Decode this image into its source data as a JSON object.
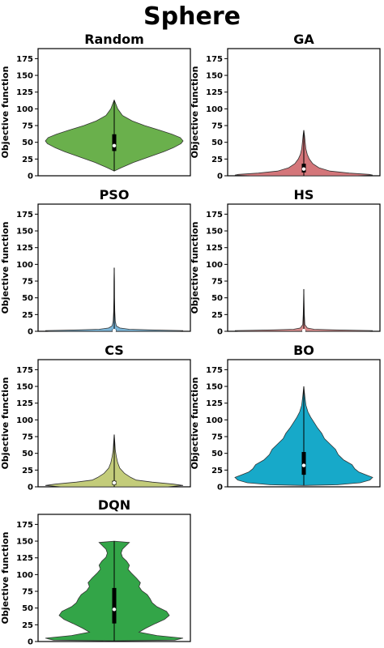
{
  "figure_title": "Sphere",
  "chart_data": [
    {
      "type": "violin",
      "title": "Random",
      "ylabel": "Objective function",
      "ylim": [
        0,
        190
      ],
      "yticks": [
        0,
        25,
        50,
        75,
        100,
        125,
        150,
        175
      ],
      "color": "#6ab04c",
      "median": 45,
      "q1": 37,
      "q3": 62,
      "profile": [
        {
          "y": 7,
          "w": 0.0
        },
        {
          "y": 12,
          "w": 0.1
        },
        {
          "y": 20,
          "w": 0.28
        },
        {
          "y": 28,
          "w": 0.5
        },
        {
          "y": 36,
          "w": 0.72
        },
        {
          "y": 42,
          "w": 0.86
        },
        {
          "y": 48,
          "w": 0.97
        },
        {
          "y": 52,
          "w": 1.0
        },
        {
          "y": 57,
          "w": 0.96
        },
        {
          "y": 62,
          "w": 0.84
        },
        {
          "y": 68,
          "w": 0.66
        },
        {
          "y": 75,
          "w": 0.44
        },
        {
          "y": 82,
          "w": 0.26
        },
        {
          "y": 90,
          "w": 0.12
        },
        {
          "y": 100,
          "w": 0.05
        },
        {
          "y": 108,
          "w": 0.02
        },
        {
          "y": 113,
          "w": 0.0
        }
      ]
    },
    {
      "type": "violin",
      "title": "GA",
      "ylabel": "Objective function",
      "ylim": [
        0,
        190
      ],
      "yticks": [
        0,
        25,
        50,
        75,
        100,
        125,
        150,
        175
      ],
      "color": "#d4767a",
      "median": 10,
      "q1": 5,
      "q3": 18,
      "profile": [
        {
          "y": 0,
          "w": 0.78
        },
        {
          "y": 1,
          "w": 1.0
        },
        {
          "y": 2,
          "w": 0.95
        },
        {
          "y": 4,
          "w": 0.66
        },
        {
          "y": 7,
          "w": 0.38
        },
        {
          "y": 12,
          "w": 0.22
        },
        {
          "y": 18,
          "w": 0.13
        },
        {
          "y": 25,
          "w": 0.08
        },
        {
          "y": 32,
          "w": 0.05
        },
        {
          "y": 40,
          "w": 0.03
        },
        {
          "y": 50,
          "w": 0.02
        },
        {
          "y": 60,
          "w": 0.01
        },
        {
          "y": 68,
          "w": 0.0
        }
      ]
    },
    {
      "type": "violin",
      "title": "PSO",
      "ylabel": "Objective function",
      "ylim": [
        0,
        190
      ],
      "yticks": [
        0,
        25,
        50,
        75,
        100,
        125,
        150,
        175
      ],
      "color": "#7ab6d9",
      "median": 1,
      "q1": 0,
      "q3": 3,
      "profile": [
        {
          "y": 0,
          "w": 0.95
        },
        {
          "y": 1,
          "w": 1.0
        },
        {
          "y": 2,
          "w": 0.52
        },
        {
          "y": 3,
          "w": 0.22
        },
        {
          "y": 5,
          "w": 0.08
        },
        {
          "y": 8,
          "w": 0.03
        },
        {
          "y": 15,
          "w": 0.015
        },
        {
          "y": 30,
          "w": 0.008
        },
        {
          "y": 50,
          "w": 0.005
        },
        {
          "y": 75,
          "w": 0.003
        },
        {
          "y": 95,
          "w": 0.0
        }
      ]
    },
    {
      "type": "violin",
      "title": "HS",
      "ylabel": "Objective function",
      "ylim": [
        0,
        190
      ],
      "yticks": [
        0,
        25,
        50,
        75,
        100,
        125,
        150,
        175
      ],
      "color": "#d98c8c",
      "median": 1,
      "q1": 0,
      "q3": 2,
      "profile": [
        {
          "y": 0,
          "w": 0.95
        },
        {
          "y": 1,
          "w": 1.0
        },
        {
          "y": 2,
          "w": 0.45
        },
        {
          "y": 3,
          "w": 0.15
        },
        {
          "y": 5,
          "w": 0.05
        },
        {
          "y": 10,
          "w": 0.015
        },
        {
          "y": 25,
          "w": 0.008
        },
        {
          "y": 45,
          "w": 0.004
        },
        {
          "y": 63,
          "w": 0.0
        }
      ]
    },
    {
      "type": "violin",
      "title": "CS",
      "ylabel": "Objective function",
      "ylim": [
        0,
        190
      ],
      "yticks": [
        0,
        25,
        50,
        75,
        100,
        125,
        150,
        175
      ],
      "color": "#c3cc7a",
      "median": 6,
      "q1": 3,
      "q3": 9,
      "profile": [
        {
          "y": 0,
          "w": 0.78
        },
        {
          "y": 2,
          "w": 1.0
        },
        {
          "y": 4,
          "w": 0.86
        },
        {
          "y": 7,
          "w": 0.55
        },
        {
          "y": 10,
          "w": 0.32
        },
        {
          "y": 14,
          "w": 0.24
        },
        {
          "y": 20,
          "w": 0.15
        },
        {
          "y": 28,
          "w": 0.08
        },
        {
          "y": 36,
          "w": 0.05
        },
        {
          "y": 45,
          "w": 0.03
        },
        {
          "y": 55,
          "w": 0.015
        },
        {
          "y": 65,
          "w": 0.01
        },
        {
          "y": 78,
          "w": 0.0
        }
      ]
    },
    {
      "type": "violin",
      "title": "BO",
      "ylabel": "Objective function",
      "ylim": [
        0,
        190
      ],
      "yticks": [
        0,
        25,
        50,
        75,
        100,
        125,
        150,
        175
      ],
      "color": "#17a9c9",
      "median": 32,
      "q1": 18,
      "q3": 52,
      "profile": [
        {
          "y": 2,
          "w": 0.0
        },
        {
          "y": 3,
          "w": 0.48
        },
        {
          "y": 6,
          "w": 0.82
        },
        {
          "y": 10,
          "w": 0.96
        },
        {
          "y": 14,
          "w": 1.0
        },
        {
          "y": 18,
          "w": 0.9
        },
        {
          "y": 22,
          "w": 0.8
        },
        {
          "y": 27,
          "w": 0.74
        },
        {
          "y": 33,
          "w": 0.7
        },
        {
          "y": 40,
          "w": 0.58
        },
        {
          "y": 48,
          "w": 0.5
        },
        {
          "y": 56,
          "w": 0.46
        },
        {
          "y": 64,
          "w": 0.38
        },
        {
          "y": 72,
          "w": 0.3
        },
        {
          "y": 80,
          "w": 0.26
        },
        {
          "y": 88,
          "w": 0.2
        },
        {
          "y": 96,
          "w": 0.15
        },
        {
          "y": 104,
          "w": 0.1
        },
        {
          "y": 112,
          "w": 0.06
        },
        {
          "y": 122,
          "w": 0.03
        },
        {
          "y": 135,
          "w": 0.015
        },
        {
          "y": 150,
          "w": 0.0
        }
      ]
    },
    {
      "type": "violin",
      "title": "DQN",
      "ylabel": "Objective function",
      "ylim": [
        0,
        190
      ],
      "yticks": [
        0,
        25,
        50,
        75,
        100,
        125,
        150,
        175
      ],
      "color": "#33a548",
      "median": 48,
      "q1": 27,
      "q3": 80,
      "profile": [
        {
          "y": 1,
          "w": 0.0
        },
        {
          "y": 2,
          "w": 0.88
        },
        {
          "y": 5,
          "w": 1.0
        },
        {
          "y": 9,
          "w": 0.62
        },
        {
          "y": 14,
          "w": 0.36
        },
        {
          "y": 20,
          "w": 0.46
        },
        {
          "y": 27,
          "w": 0.6
        },
        {
          "y": 33,
          "w": 0.73
        },
        {
          "y": 39,
          "w": 0.8
        },
        {
          "y": 45,
          "w": 0.76
        },
        {
          "y": 52,
          "w": 0.62
        },
        {
          "y": 58,
          "w": 0.55
        },
        {
          "y": 64,
          "w": 0.52
        },
        {
          "y": 70,
          "w": 0.48
        },
        {
          "y": 76,
          "w": 0.4
        },
        {
          "y": 82,
          "w": 0.36
        },
        {
          "y": 88,
          "w": 0.38
        },
        {
          "y": 95,
          "w": 0.32
        },
        {
          "y": 102,
          "w": 0.25
        },
        {
          "y": 108,
          "w": 0.2
        },
        {
          "y": 114,
          "w": 0.22
        },
        {
          "y": 120,
          "w": 0.18
        },
        {
          "y": 126,
          "w": 0.12
        },
        {
          "y": 132,
          "w": 0.1
        },
        {
          "y": 138,
          "w": 0.12
        },
        {
          "y": 144,
          "w": 0.18
        },
        {
          "y": 148,
          "w": 0.22
        },
        {
          "y": 150,
          "w": 0.0
        }
      ]
    }
  ]
}
